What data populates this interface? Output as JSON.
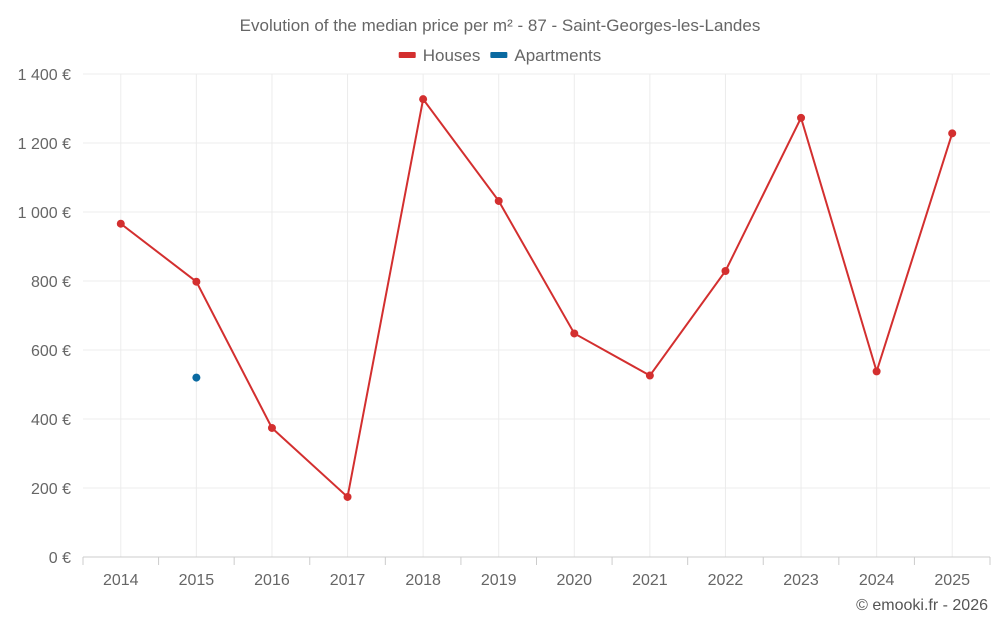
{
  "chart_data": {
    "type": "line",
    "title": "Evolution of the median price per m² - 87 - Saint-Georges-les-Landes",
    "categories": [
      "2014",
      "2015",
      "2016",
      "2017",
      "2018",
      "2019",
      "2020",
      "2021",
      "2022",
      "2023",
      "2024",
      "2025"
    ],
    "series": [
      {
        "name": "Houses",
        "color": "#d32f2f",
        "values": [
          966,
          798,
          374,
          174,
          1327,
          1032,
          648,
          526,
          829,
          1273,
          538,
          1228
        ]
      },
      {
        "name": "Apartments",
        "color": "#0a6aa1",
        "values": [
          null,
          520,
          null,
          null,
          null,
          null,
          null,
          null,
          null,
          null,
          null,
          null
        ]
      }
    ],
    "ylim": [
      0,
      1400
    ],
    "yticks": [
      0,
      200,
      400,
      600,
      800,
      1000,
      1200,
      1400
    ],
    "ytick_labels": [
      "0 €",
      "200 €",
      "400 €",
      "600 €",
      "800 €",
      "1 000 €",
      "1 200 €",
      "1 400 €"
    ],
    "xlabel": "",
    "ylabel": "",
    "grid": true,
    "legend_position": "top-center"
  },
  "credit": "© emooki.fr - 2026"
}
